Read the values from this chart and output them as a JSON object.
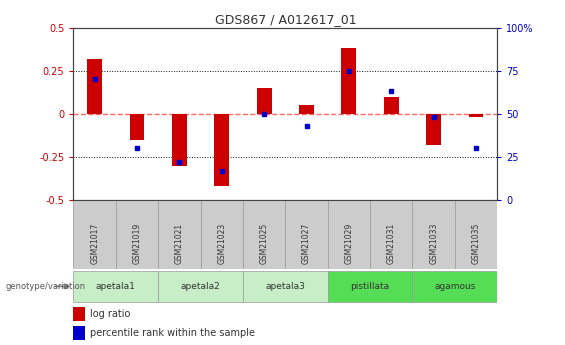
{
  "title": "GDS867 / A012617_01",
  "samples": [
    "GSM21017",
    "GSM21019",
    "GSM21021",
    "GSM21023",
    "GSM21025",
    "GSM21027",
    "GSM21029",
    "GSM21031",
    "GSM21033",
    "GSM21035"
  ],
  "log_ratio": [
    0.32,
    -0.15,
    -0.3,
    -0.42,
    0.15,
    0.05,
    0.38,
    0.1,
    -0.18,
    -0.02
  ],
  "percentile_rank_pct": [
    70,
    30,
    22,
    17,
    50,
    43,
    75,
    63,
    48,
    30
  ],
  "groups": [
    {
      "label": "apetala1",
      "samples": [
        0,
        1
      ],
      "color": "#c8eec8"
    },
    {
      "label": "apetala2",
      "samples": [
        2,
        3
      ],
      "color": "#c8eec8"
    },
    {
      "label": "apetala3",
      "samples": [
        4,
        5
      ],
      "color": "#c8eec8"
    },
    {
      "label": "pistillata",
      "samples": [
        6,
        7
      ],
      "color": "#55dd55"
    },
    {
      "label": "agamous",
      "samples": [
        8,
        9
      ],
      "color": "#55dd55"
    }
  ],
  "ylim": [
    -0.5,
    0.5
  ],
  "yticks_left": [
    -0.5,
    -0.25,
    0.0,
    0.25,
    0.5
  ],
  "yticks_right": [
    0,
    25,
    50,
    75,
    100
  ],
  "bar_color": "#cc0000",
  "dot_color": "#0000cc",
  "zero_line_color": "#ff6666",
  "grid_color": "#111111",
  "sample_box_color": "#cccccc",
  "background_color": "#ffffff",
  "bar_width": 0.35
}
